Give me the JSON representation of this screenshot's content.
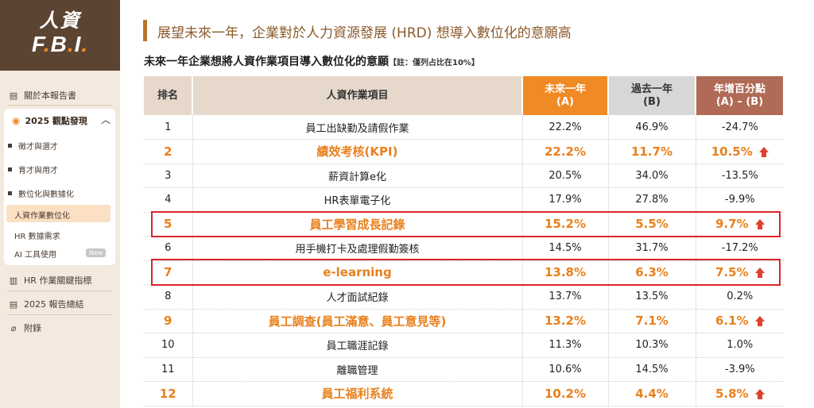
{
  "logo": {
    "line1": "人資",
    "line2_parts": [
      "F",
      ".",
      "B",
      ".",
      "I",
      "."
    ]
  },
  "sidebar": {
    "about": "關於本報告書",
    "group": {
      "title": "2025 觀點發現",
      "items": [
        {
          "label": "徵才與選才",
          "bullet": true
        },
        {
          "label": "育才與用才",
          "bullet": true
        },
        {
          "label": "數位化與數據化",
          "bullet": true
        },
        {
          "label": "人資作業數位化",
          "active": true
        },
        {
          "label": "HR 數據需求"
        },
        {
          "label": "AI 工具使用",
          "badge": "New"
        }
      ]
    },
    "kpi": "HR 作業關鍵指標",
    "summary": "2025 報告總結",
    "appendix": "附錄"
  },
  "main": {
    "title": "展望未來一年，企業對於人力資源發展 (HRD) 想導入數位化的意願高",
    "subtitle": "未來一年企業想將人資作業項目導入數位化的意願",
    "note": "【註：僅列占比在10%】",
    "table": {
      "headers": {
        "rank": "排名",
        "item": "人資作業項目",
        "a_line1": "未來一年",
        "a_line2": "(A)",
        "b_line1": "過去一年",
        "b_line2": "(B)",
        "c_line1": "年增百分點",
        "c_line2": "(A) – (B)"
      },
      "rows": [
        {
          "rank": "1",
          "item": "員工出缺勤及請假作業",
          "a": "22.2%",
          "b": "46.9%",
          "c": "-24.7%",
          "hl": false
        },
        {
          "rank": "2",
          "item": "績效考核(KPI)",
          "a": "22.2%",
          "b": "11.7%",
          "c": "10.5%",
          "hl": true
        },
        {
          "rank": "3",
          "item": "薪資計算e化",
          "a": "20.5%",
          "b": "34.0%",
          "c": "-13.5%",
          "hl": false
        },
        {
          "rank": "4",
          "item": "HR表單電子化",
          "a": "17.9%",
          "b": "27.8%",
          "c": "-9.9%",
          "hl": false
        },
        {
          "rank": "5",
          "item": "員工學習成長記錄",
          "a": "15.2%",
          "b": "5.5%",
          "c": "9.7%",
          "hl": true
        },
        {
          "rank": "6",
          "item": "用手機打卡及處理假勤簽核",
          "a": "14.5%",
          "b": "31.7%",
          "c": "-17.2%",
          "hl": false
        },
        {
          "rank": "7",
          "item": "e-learning",
          "a": "13.8%",
          "b": "6.3%",
          "c": "7.5%",
          "hl": true
        },
        {
          "rank": "8",
          "item": "人才面試紀錄",
          "a": "13.7%",
          "b": "13.5%",
          "c": "0.2%",
          "hl": false
        },
        {
          "rank": "9",
          "item": "員工調查(員工滿意、員工意見等)",
          "a": "13.2%",
          "b": "7.1%",
          "c": "6.1%",
          "hl": true
        },
        {
          "rank": "10",
          "item": "員工職涯記錄",
          "a": "11.3%",
          "b": "10.3%",
          "c": "1.0%",
          "hl": false
        },
        {
          "rank": "11",
          "item": "離職管理",
          "a": "10.6%",
          "b": "14.5%",
          "c": "-3.9%",
          "hl": false
        },
        {
          "rank": "12",
          "item": "員工福利系統",
          "a": "10.2%",
          "b": "4.4%",
          "c": "5.8%",
          "hl": true
        }
      ]
    }
  },
  "colors": {
    "brand_brown": "#5c4433",
    "accent_orange": "#f08a24",
    "highlight_red": "#d9252b",
    "arrow_red": "#e0412e"
  }
}
